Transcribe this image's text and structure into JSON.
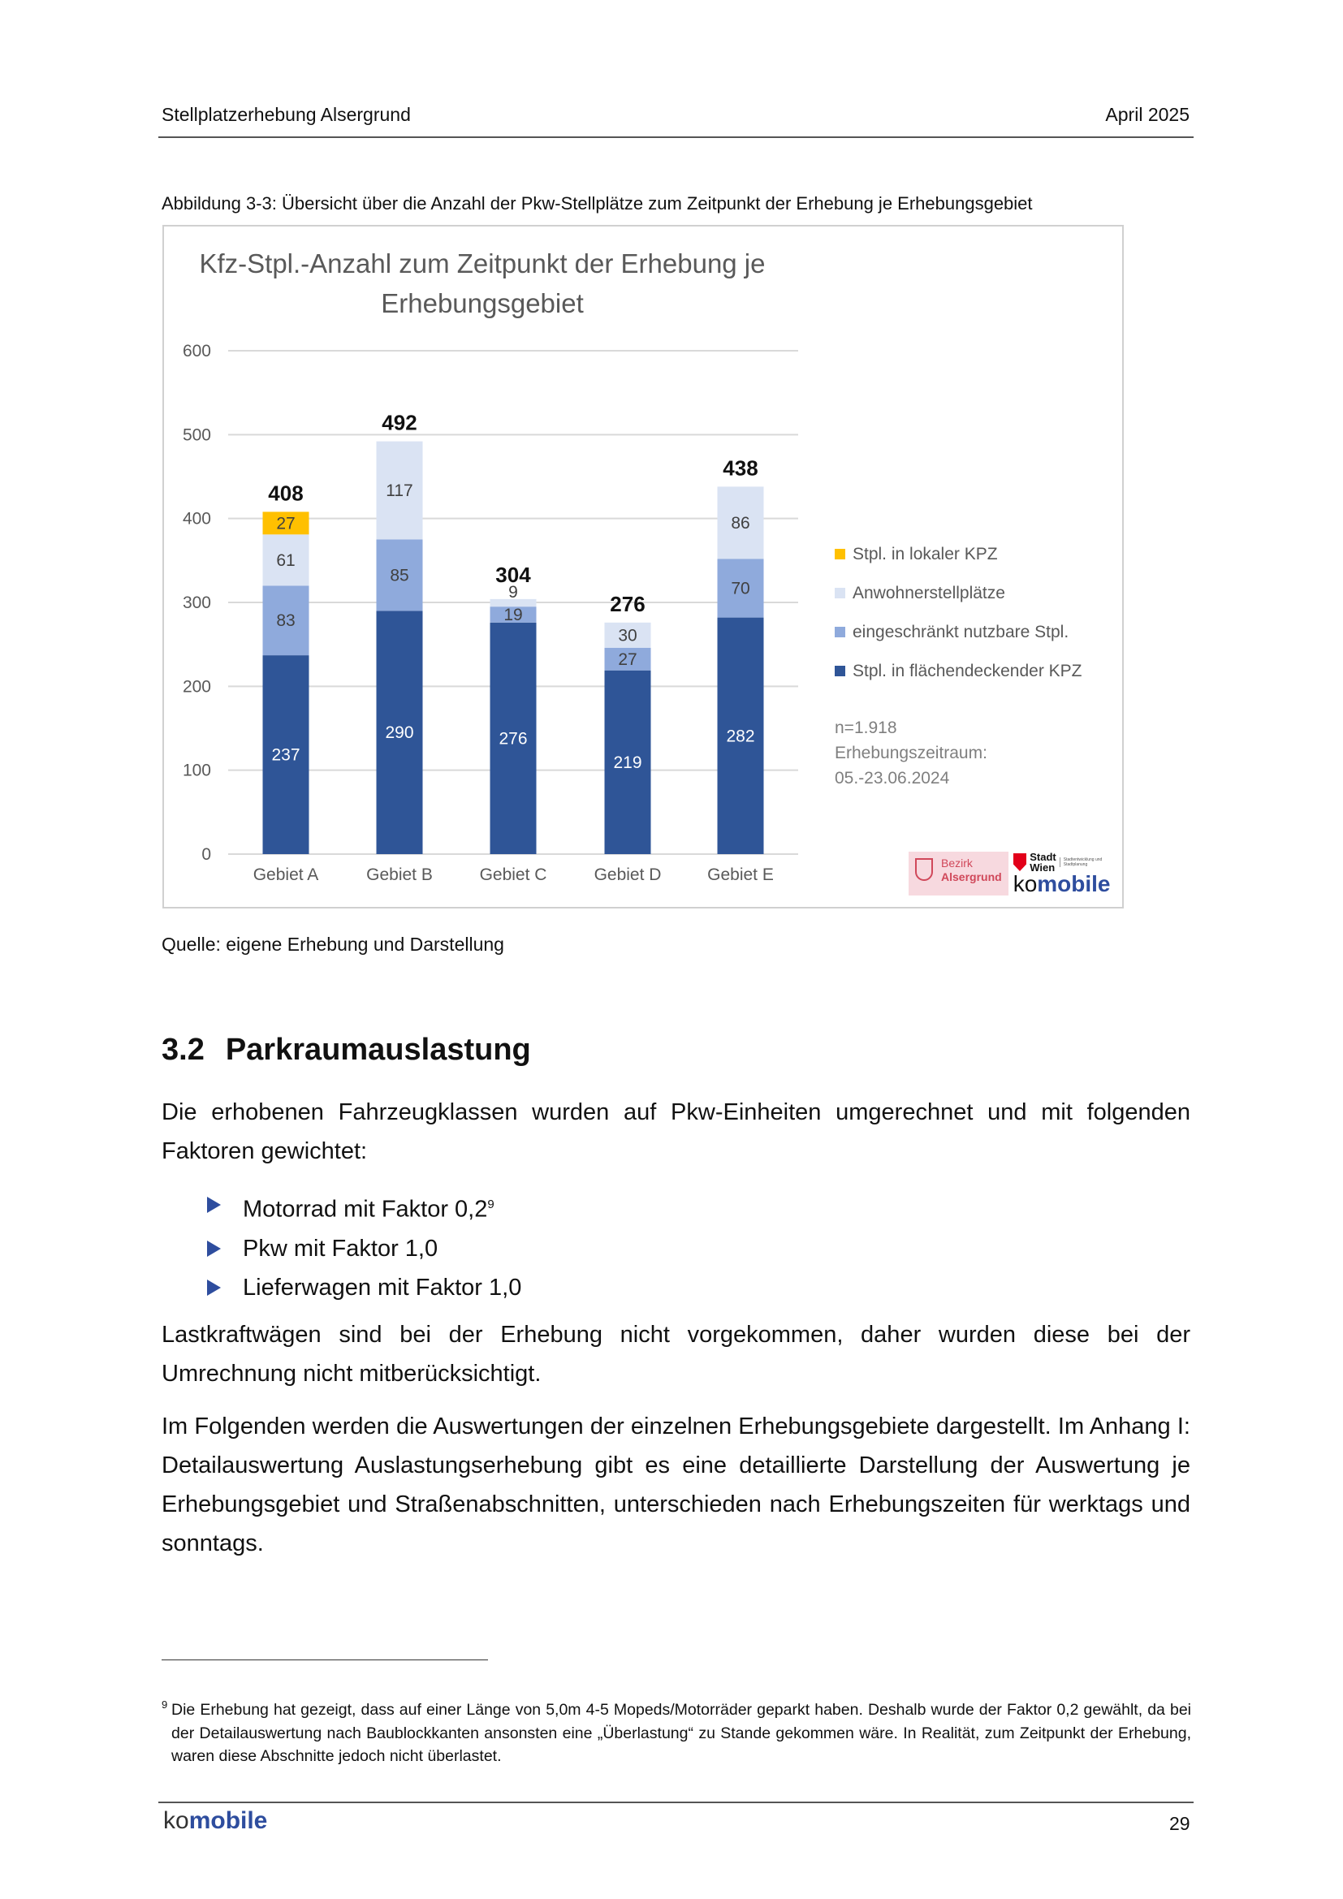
{
  "header": {
    "title": "Stellplatzerhebung Alsergrund",
    "date": "April 2025"
  },
  "figure": {
    "caption": "Abbildung 3-3: Übersicht über die Anzahl der Pkw-Stellplätze zum Zeitpunkt der Erhebung je Erhebungsgebiet",
    "source": "Quelle: eigene Erhebung und Darstellung",
    "notes": [
      "n=1.918",
      "Erhebungszeitraum:",
      "05.-23.06.2024"
    ],
    "logos": {
      "bezirk_line1": "Bezirk",
      "bezirk_line2": "Alsergrund",
      "stadt_line1": "Stadt",
      "stadt_line2": "Wien",
      "stadt_sub": "Stadtentwicklung und Stadtplanung",
      "komobile_ko": "ko",
      "komobile_mobile": "mobile"
    }
  },
  "chart_data": {
    "type": "bar",
    "stacked": true,
    "title_line1": "Kfz-Stpl.-Anzahl  zum Zeitpunkt der Erhebung je",
    "title_line2": "Erhebungsgebiet",
    "categories": [
      "Gebiet A",
      "Gebiet B",
      "Gebiet C",
      "Gebiet D",
      "Gebiet E"
    ],
    "series": [
      {
        "name": "Stpl. in flächendeckender KPZ",
        "color": "#2F5597",
        "values": [
          237,
          290,
          276,
          219,
          282
        ]
      },
      {
        "name": "eingeschränkt nutzbare Stpl.",
        "color": "#8FAADC",
        "values": [
          83,
          85,
          19,
          27,
          70
        ]
      },
      {
        "name": "Anwohnerstellplätze",
        "color": "#DAE3F3",
        "values": [
          61,
          117,
          9,
          30,
          86
        ]
      },
      {
        "name": "Stpl. in lokaler KPZ",
        "color": "#FFC000",
        "values": [
          27,
          0,
          0,
          0,
          0
        ]
      }
    ],
    "totals": [
      408,
      492,
      304,
      276,
      438
    ],
    "yticks": [
      0,
      100,
      200,
      300,
      400,
      500,
      600
    ],
    "ylim": [
      0,
      600
    ],
    "grid": true,
    "legend_position": "right",
    "legend_order": [
      "Stpl. in lokaler KPZ",
      "Anwohnerstellplätze",
      "eingeschränkt nutzbare Stpl.",
      "Stpl. in flächendeckender KPZ"
    ]
  },
  "section": {
    "number": "3.2",
    "title": "Parkraumauslastung",
    "intro": "Die erhobenen Fahrzeugklassen wurden auf Pkw-Einheiten umgerechnet und mit folgenden Faktoren gewichtet:",
    "bullets": [
      "Motorrad mit Faktor 0,2",
      "Pkw mit Faktor 1,0",
      "Lieferwagen mit Faktor 1,0"
    ],
    "bullet1_footnote": "9",
    "para2": "Lastkraftwägen sind bei der Erhebung nicht vorgekommen, daher wurden diese bei der Umrechnung nicht mitberücksichtigt.",
    "para3": "Im Folgenden werden die Auswertungen der einzelnen Erhebungsgebiete dargestellt. Im Anhang I: Detailauswertung Auslastungserhebung gibt es eine detaillierte Darstellung der Auswertung je Erhebungsgebiet und Straßenabschnitten, unterschieden nach Erhebungszeiten für werktags und sonntags."
  },
  "footnote": {
    "number": "9",
    "text": "Die Erhebung hat gezeigt, dass auf einer Länge von 5,0m  4-5 Mopeds/Motorräder geparkt haben. Deshalb wurde der Faktor 0,2 gewählt, da bei der Detailauswertung nach Baublockkanten ansonsten eine „Überlastung“ zu Stande gekommen wäre. In Realität, zum Zeitpunkt der Erhebung, waren diese Abschnitte jedoch nicht überlastet."
  },
  "footer": {
    "logo_ko": "ko",
    "logo_mobile": "mobile",
    "page": "29"
  }
}
